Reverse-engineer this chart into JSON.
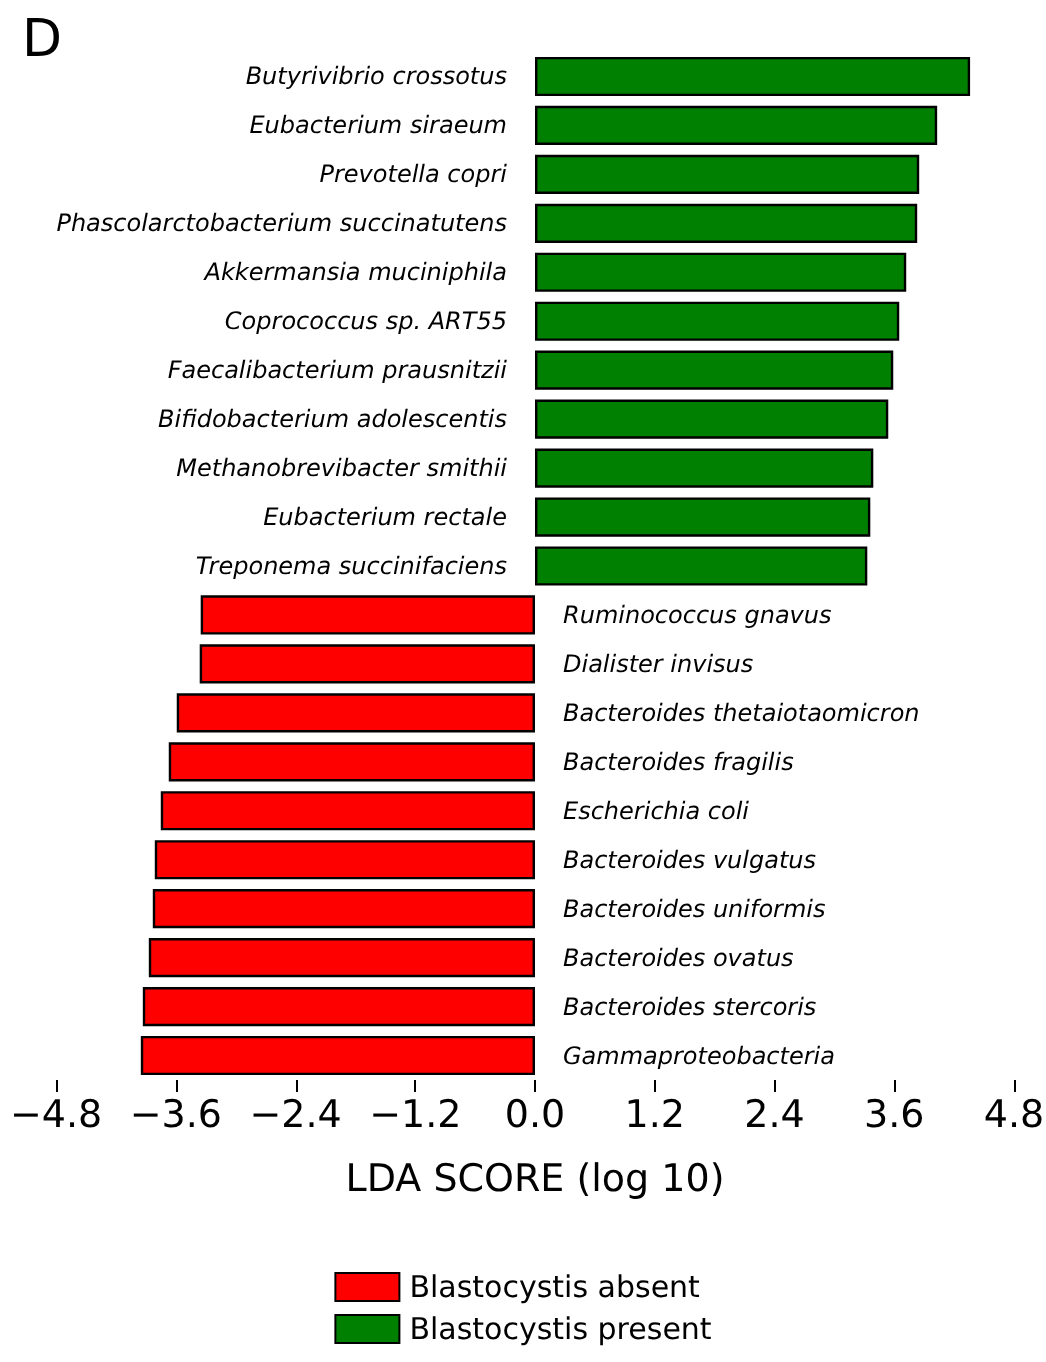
{
  "chart_data": {
    "type": "bar",
    "orientation": "horizontal",
    "title": "D",
    "xlabel": "LDA SCORE (log 10)",
    "categories": [
      "Butyrivibrio crossotus",
      "Eubacterium siraeum",
      "Prevotella copri",
      "Phascolarctobacterium succinatutens",
      "Akkermansia muciniphila",
      "Coprococcus sp. ART55",
      "Faecalibacterium prausnitzii",
      "Bifidobacterium adolescentis",
      "Methanobrevibacter smithii",
      "Eubacterium rectale",
      "Treponema succinifaciens",
      "Ruminococcus gnavus",
      "Dialister invisus",
      "Bacteroides thetaiotaomicron",
      "Bacteroides fragilis",
      "Escherichia coli",
      "Bacteroides vulgatus",
      "Bacteroides uniformis",
      "Bacteroides ovatus",
      "Bacteroides stercoris",
      "Gammaproteobacteria"
    ],
    "series": [
      {
        "name": "Blastocystis absent",
        "color": "#ff0000",
        "values": [
          null,
          null,
          null,
          null,
          null,
          null,
          null,
          null,
          null,
          null,
          null,
          -3.35,
          -3.36,
          -3.59,
          -3.67,
          -3.75,
          -3.81,
          -3.83,
          -3.87,
          -3.93,
          -3.95
        ]
      },
      {
        "name": "Blastocystis present",
        "color": "#008000",
        "values": [
          4.36,
          4.03,
          3.85,
          3.83,
          3.72,
          3.65,
          3.59,
          3.54,
          3.39,
          3.36,
          3.33,
          null,
          null,
          null,
          null,
          null,
          null,
          null,
          null,
          null,
          null
        ]
      }
    ],
    "xlim": [
      -4.8,
      4.8
    ],
    "xticks": [
      {
        "value": -4.8,
        "label": "−4.8"
      },
      {
        "value": -3.6,
        "label": "−3.6"
      },
      {
        "value": -2.4,
        "label": "−2.4"
      },
      {
        "value": -1.2,
        "label": "−1.2"
      },
      {
        "value": 0,
        "label": "0.0"
      },
      {
        "value": 1.2,
        "label": "1.2"
      },
      {
        "value": 2.4,
        "label": "2.4"
      },
      {
        "value": 3.6,
        "label": "3.6"
      },
      {
        "value": 4.8,
        "label": "4.8"
      }
    ],
    "legend": "bottom",
    "grid": false
  }
}
